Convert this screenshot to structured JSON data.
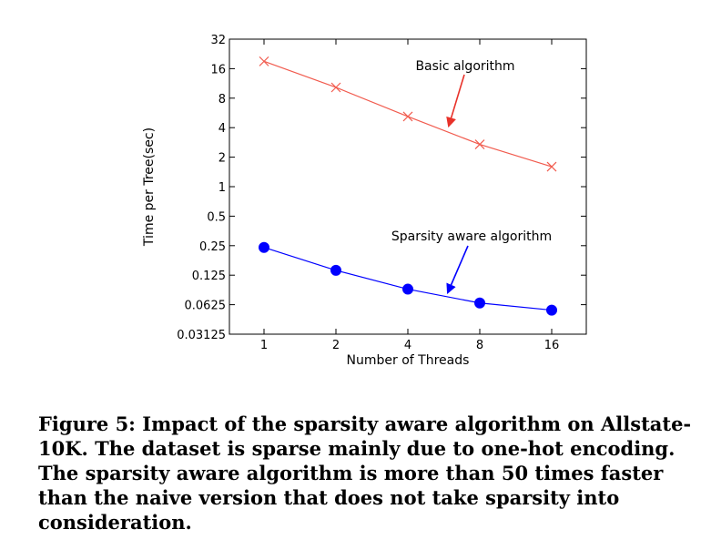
{
  "chart_data": {
    "type": "line",
    "xlabel": "Number of Threads",
    "ylabel": "Time per Tree(sec)",
    "x": [
      1,
      2,
      4,
      8,
      16
    ],
    "x_tick_labels": [
      "1",
      "2",
      "4",
      "8",
      "16"
    ],
    "x_scale": "log2",
    "y_scale": "log2",
    "ylim": [
      0.03125,
      32
    ],
    "y_tick_values": [
      0.03125,
      0.0625,
      0.125,
      0.25,
      0.5,
      1,
      2,
      4,
      8,
      16,
      32
    ],
    "y_tick_labels": [
      "0.03125",
      "0.0625",
      "0.125",
      "0.25",
      "0.5",
      "1",
      "2",
      "4",
      "8",
      "16",
      "32"
    ],
    "grid": false,
    "series": [
      {
        "key": "basic",
        "values": [
          19,
          10.3,
          5.2,
          2.7,
          1.6
        ],
        "color": "#f15b4e",
        "marker": "x"
      },
      {
        "key": "sparse",
        "values": [
          0.24,
          0.14,
          0.09,
          0.065,
          0.055
        ],
        "color": "#0000ff",
        "marker": "circle"
      }
    ],
    "annotations": [
      {
        "text": "Basic algorithm",
        "series": "basic",
        "arrow_color": "#e8322a"
      },
      {
        "text": "Sparsity aware algorithm",
        "series": "sparse",
        "arrow_color": "#0000ff"
      }
    ]
  },
  "caption": "Figure 5: Impact of the sparsity aware algorithm on Allstate-10K. The dataset is sparse mainly due to one-hot encoding. The sparsity aware algorithm is more than 50 times faster than the naive version that does not take sparsity into consideration."
}
